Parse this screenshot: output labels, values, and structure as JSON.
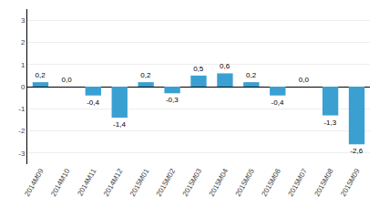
{
  "chart_data": {
    "type": "bar",
    "categories": [
      "2014M09",
      "2014M10",
      "2014M11",
      "2014M12",
      "2015M01",
      "2015M02",
      "2015M03",
      "2015M04",
      "2015M05",
      "2015M06",
      "2015M07",
      "2015M08",
      "2015M09"
    ],
    "values": [
      0.2,
      0.0,
      -0.4,
      -1.4,
      0.2,
      -0.3,
      0.5,
      0.6,
      0.2,
      -0.4,
      0.0,
      -1.3,
      -2.6
    ],
    "value_labels": [
      "0,2",
      "0,0",
      "-0,4",
      "-1,4",
      "0,2",
      "-0,3",
      "0,5",
      "0,6",
      "0,2",
      "-0,4",
      "0,0",
      "-1,3",
      "-2,6"
    ],
    "data_labels": true,
    "color": "#3aa0d2",
    "ylim": [
      -3.5,
      3.5
    ],
    "yticks": [
      -3,
      -2,
      -1,
      0,
      1,
      2,
      3
    ],
    "grid": true
  }
}
